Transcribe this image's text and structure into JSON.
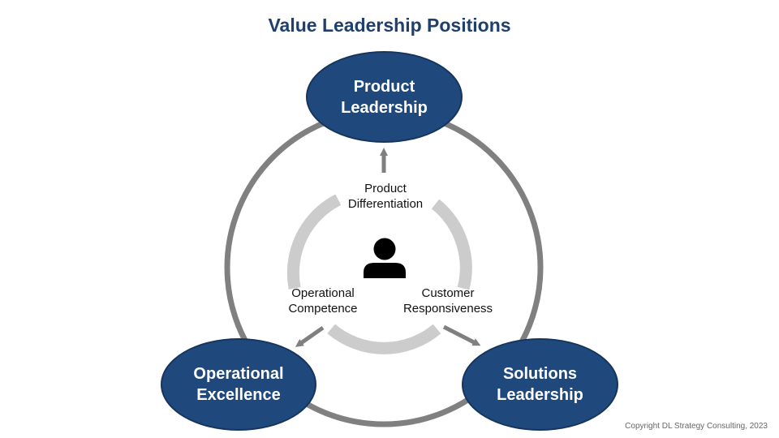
{
  "title": "Value Leadership Positions",
  "nodes": {
    "product": {
      "line1": "Product",
      "line2": "Leadership"
    },
    "operational": {
      "line1": "Operational",
      "line2": "Excellence"
    },
    "solutions": {
      "line1": "Solutions",
      "line2": "Leadership"
    }
  },
  "inner_labels": {
    "top": {
      "line1": "Product",
      "line2": "Differentiation"
    },
    "left": {
      "line1": "Operational",
      "line2": "Competence"
    },
    "right": {
      "line1": "Customer",
      "line2": "Responsiveness"
    }
  },
  "center_icon": "person-icon",
  "copyright": "Copyright DL Strategy Consulting, 2023",
  "colors": {
    "title": "#1f3f6e",
    "node_fill": "#1f497d",
    "outer_ring": "#808080",
    "inner_ring": "#cccccc",
    "arrow": "#808080",
    "icon": "#000000"
  }
}
